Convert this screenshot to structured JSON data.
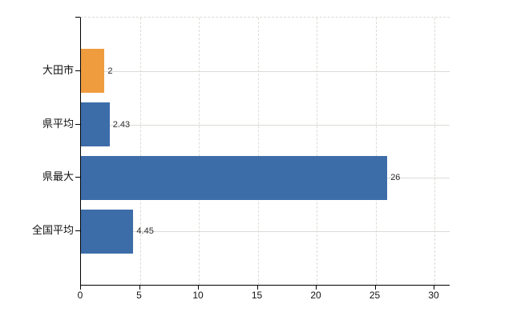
{
  "chart_data": {
    "type": "bar",
    "orientation": "horizontal",
    "title": "",
    "categories": [
      "大田市",
      "県平均",
      "県最大",
      "全国平均"
    ],
    "values": [
      2,
      2.43,
      26,
      4.45
    ],
    "value_labels": [
      "2",
      "2.43",
      "26",
      "4.45"
    ],
    "bar_colors": [
      "#ef9c3f",
      "#3d6da9",
      "#3d6da9",
      "#3d6da9"
    ],
    "x_tick_values": [
      0,
      5,
      10,
      15,
      20,
      25,
      30
    ],
    "x_tick_labels": [
      "0",
      "5",
      "10",
      "15",
      "20",
      "25",
      "30"
    ],
    "xlim": [
      0,
      31.3
    ],
    "grid": "both",
    "legend": "none",
    "colors": {
      "bar_highlight": "#ef9c3f",
      "bar_default": "#3d6da9",
      "gridline": "#d9ddd6",
      "axis": "#000000",
      "text": "#111111"
    }
  }
}
